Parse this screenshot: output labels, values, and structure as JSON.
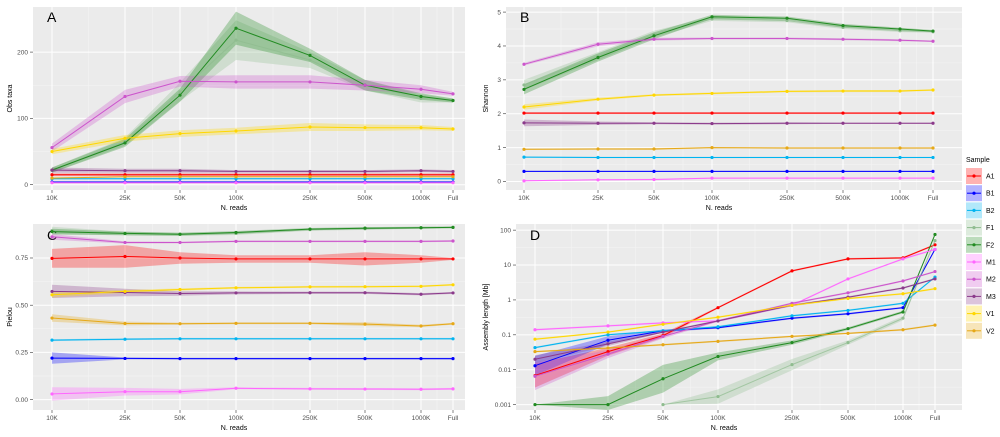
{
  "legend": {
    "title": "Sample",
    "position": "right",
    "items": [
      {
        "name": "A1",
        "color": "#ff0000"
      },
      {
        "name": "B1",
        "color": "#0000ff"
      },
      {
        "name": "B2",
        "color": "#00b4f0"
      },
      {
        "name": "F1",
        "color": "#8fbc8f"
      },
      {
        "name": "F2",
        "color": "#228b22"
      },
      {
        "name": "M1",
        "color": "#ff66ff"
      },
      {
        "name": "M2",
        "color": "#cc55cc"
      },
      {
        "name": "M3",
        "color": "#8b3a8b"
      },
      {
        "name": "V1",
        "color": "#ffd700"
      },
      {
        "name": "V2",
        "color": "#e6a817"
      }
    ]
  },
  "chart_data": [
    {
      "panel": "A",
      "type": "line",
      "title": "",
      "xlabel": "N. reads",
      "ylabel": "Obs taxa",
      "yscale": "linear",
      "ylim": [
        -8,
        268
      ],
      "yticks": [
        0,
        100,
        200
      ],
      "ytick_labels": [
        "0",
        "100",
        "200"
      ],
      "categories": [
        "10K",
        "25K",
        "50K",
        "100K",
        "250K",
        "500K",
        "1000K",
        "Full"
      ],
      "grid": true,
      "series": [
        {
          "name": "A1",
          "values": [
            15,
            15,
            15,
            15,
            15,
            15,
            15,
            15
          ],
          "band": [
            2,
            2,
            2,
            2,
            2,
            2,
            2,
            2
          ]
        },
        {
          "name": "B1",
          "values": [
            4,
            4,
            4,
            4,
            4,
            4,
            4,
            4
          ],
          "band": [
            1,
            1,
            1,
            1,
            1,
            1,
            1,
            1
          ]
        },
        {
          "name": "B2",
          "values": [
            9,
            9,
            9,
            9,
            9,
            9,
            9,
            9
          ],
          "band": [
            1,
            1,
            1,
            1,
            1,
            1,
            1,
            1
          ]
        },
        {
          "name": "F1",
          "values": [
            22,
            65,
            140,
            218,
            188,
            150,
            130,
            127
          ],
          "band": [
            4,
            6,
            14,
            30,
            12,
            8,
            6,
            3
          ]
        },
        {
          "name": "F2",
          "values": [
            22,
            63,
            135,
            236,
            195,
            150,
            133,
            127
          ],
          "band": [
            4,
            6,
            10,
            25,
            10,
            8,
            5,
            3
          ]
        },
        {
          "name": "M1",
          "values": [
            3,
            3,
            3,
            3,
            3,
            3,
            3,
            3
          ],
          "band": [
            1,
            1,
            1,
            1,
            1,
            1,
            1,
            1
          ]
        },
        {
          "name": "M2",
          "values": [
            56,
            133,
            156,
            155,
            155,
            150,
            144,
            137
          ],
          "band": [
            6,
            10,
            8,
            10,
            10,
            8,
            6,
            3
          ]
        },
        {
          "name": "M3",
          "values": [
            22,
            21,
            21,
            20,
            20,
            20,
            21,
            20
          ],
          "band": [
            4,
            3,
            3,
            2,
            2,
            2,
            2,
            2
          ]
        },
        {
          "name": "V1",
          "values": [
            50,
            70,
            77,
            81,
            87,
            86,
            86,
            84
          ],
          "band": [
            4,
            5,
            5,
            5,
            6,
            5,
            4,
            3
          ]
        },
        {
          "name": "V2",
          "values": [
            10,
            12,
            12,
            12,
            12,
            12,
            12,
            12
          ],
          "band": [
            1,
            1,
            1,
            1,
            1,
            1,
            1,
            1
          ]
        }
      ]
    },
    {
      "panel": "B",
      "type": "line",
      "title": "",
      "xlabel": "N. reads",
      "ylabel": "Shannon",
      "yscale": "linear",
      "ylim": [
        -0.25,
        5.15
      ],
      "yticks": [
        0,
        1,
        2,
        3,
        4,
        5
      ],
      "ytick_labels": [
        "0",
        "1",
        "2",
        "3",
        "4",
        "5"
      ],
      "categories": [
        "10K",
        "25K",
        "50K",
        "100K",
        "250K",
        "500K",
        "1000K",
        "Full"
      ],
      "grid": true,
      "series": [
        {
          "name": "A1",
          "values": [
            2.02,
            2.02,
            2.02,
            2.02,
            2.02,
            2.02,
            2.02,
            2.02
          ],
          "band": [
            0.03,
            0.03,
            0.03,
            0.03,
            0.03,
            0.03,
            0.03,
            0.03
          ]
        },
        {
          "name": "B1",
          "values": [
            0.3,
            0.3,
            0.3,
            0.3,
            0.3,
            0.3,
            0.3,
            0.3
          ],
          "band": [
            0.02,
            0.02,
            0.02,
            0.02,
            0.02,
            0.02,
            0.02,
            0.02
          ]
        },
        {
          "name": "B2",
          "values": [
            0.72,
            0.71,
            0.71,
            0.71,
            0.71,
            0.71,
            0.71,
            0.71
          ],
          "band": [
            0.02,
            0.02,
            0.02,
            0.02,
            0.02,
            0.02,
            0.02,
            0.02
          ]
        },
        {
          "name": "F1",
          "values": [
            2.85,
            3.7,
            4.35,
            4.8,
            4.75,
            4.55,
            4.45,
            4.42
          ],
          "band": [
            0.15,
            0.12,
            0.1,
            0.06,
            0.05,
            0.05,
            0.04,
            0.03
          ]
        },
        {
          "name": "F2",
          "values": [
            2.72,
            3.66,
            4.3,
            4.86,
            4.82,
            4.6,
            4.5,
            4.44
          ],
          "band": [
            0.15,
            0.12,
            0.1,
            0.06,
            0.05,
            0.05,
            0.04,
            0.03
          ]
        },
        {
          "name": "M1",
          "values": [
            0.02,
            0.05,
            0.06,
            0.1,
            0.1,
            0.1,
            0.1,
            0.1
          ],
          "band": [
            0.02,
            0.02,
            0.02,
            0.02,
            0.02,
            0.02,
            0.02,
            0.02
          ]
        },
        {
          "name": "M2",
          "values": [
            3.46,
            4.05,
            4.2,
            4.22,
            4.22,
            4.2,
            4.17,
            4.14
          ],
          "band": [
            0.04,
            0.06,
            0.04,
            0.03,
            0.03,
            0.03,
            0.03,
            0.02
          ]
        },
        {
          "name": "M3",
          "values": [
            1.73,
            1.72,
            1.72,
            1.71,
            1.72,
            1.72,
            1.72,
            1.72
          ],
          "band": [
            0.1,
            0.05,
            0.03,
            0.03,
            0.03,
            0.02,
            0.02,
            0.02
          ]
        },
        {
          "name": "V1",
          "values": [
            2.2,
            2.43,
            2.55,
            2.6,
            2.66,
            2.67,
            2.67,
            2.7
          ],
          "band": [
            0.08,
            0.04,
            0.03,
            0.03,
            0.03,
            0.03,
            0.03,
            0.02
          ]
        },
        {
          "name": "V2",
          "values": [
            0.95,
            0.96,
            0.96,
            1.0,
            0.99,
            0.99,
            0.99,
            0.99
          ],
          "band": [
            0.02,
            0.02,
            0.03,
            0.02,
            0.02,
            0.02,
            0.02,
            0.02
          ]
        }
      ]
    },
    {
      "panel": "C",
      "type": "line",
      "title": "",
      "xlabel": "N. reads",
      "ylabel": "Pielou",
      "yscale": "linear",
      "ylim": [
        -0.055,
        0.93
      ],
      "yticks": [
        0.0,
        0.25,
        0.5,
        0.75
      ],
      "ytick_labels": [
        "0.00",
        "0.25",
        "0.50",
        "0.75"
      ],
      "categories": [
        "10K",
        "25K",
        "50K",
        "100K",
        "250K",
        "500K",
        "1000K",
        "Full"
      ],
      "grid": true,
      "series": [
        {
          "name": "A1",
          "values": [
            0.748,
            0.758,
            0.75,
            0.745,
            0.745,
            0.745,
            0.745,
            0.745
          ],
          "band": [
            0.05,
            0.06,
            0.03,
            0.02,
            0.02,
            0.035,
            0.02,
            0.005
          ]
        },
        {
          "name": "B1",
          "values": [
            0.22,
            0.218,
            0.217,
            0.217,
            0.217,
            0.217,
            0.217,
            0.217
          ],
          "band": [
            0.03,
            0.005,
            0.005,
            0.005,
            0.005,
            0.005,
            0.005,
            0.005
          ]
        },
        {
          "name": "B2",
          "values": [
            0.315,
            0.32,
            0.322,
            0.322,
            0.322,
            0.322,
            0.322,
            0.322
          ],
          "band": [
            0.005,
            0.005,
            0.005,
            0.005,
            0.005,
            0.005,
            0.005,
            0.005
          ]
        },
        {
          "name": "F1",
          "values": [
            0.895,
            0.88,
            0.875,
            0.88,
            0.9,
            0.905,
            0.91,
            0.912
          ],
          "band": [
            0.02,
            0.01,
            0.008,
            0.008,
            0.006,
            0.006,
            0.005,
            0.005
          ]
        },
        {
          "name": "F2",
          "values": [
            0.89,
            0.88,
            0.876,
            0.885,
            0.903,
            0.908,
            0.91,
            0.912
          ],
          "band": [
            0.015,
            0.01,
            0.008,
            0.008,
            0.006,
            0.006,
            0.005,
            0.005
          ]
        },
        {
          "name": "M1",
          "values": [
            0.03,
            0.042,
            0.042,
            0.06,
            0.057,
            0.056,
            0.055,
            0.057
          ],
          "band": [
            0.035,
            0.02,
            0.015,
            0.005,
            0.005,
            0.005,
            0.005,
            0.005
          ]
        },
        {
          "name": "M2",
          "values": [
            0.862,
            0.832,
            0.832,
            0.838,
            0.838,
            0.838,
            0.838,
            0.84
          ],
          "band": [
            0.015,
            0.006,
            0.005,
            0.005,
            0.005,
            0.005,
            0.005,
            0.005
          ]
        },
        {
          "name": "M3",
          "values": [
            0.573,
            0.567,
            0.562,
            0.565,
            0.566,
            0.566,
            0.558,
            0.565
          ],
          "band": [
            0.035,
            0.02,
            0.012,
            0.008,
            0.006,
            0.006,
            0.006,
            0.005
          ]
        },
        {
          "name": "V1",
          "values": [
            0.555,
            0.573,
            0.583,
            0.592,
            0.597,
            0.598,
            0.6,
            0.608
          ],
          "band": [
            0.015,
            0.008,
            0.006,
            0.005,
            0.005,
            0.005,
            0.005,
            0.005
          ]
        },
        {
          "name": "V2",
          "values": [
            0.432,
            0.403,
            0.402,
            0.404,
            0.404,
            0.4,
            0.39,
            0.402
          ],
          "band": [
            0.02,
            0.01,
            0.006,
            0.005,
            0.005,
            0.01,
            0.006,
            0.005
          ]
        }
      ]
    },
    {
      "panel": "D",
      "type": "line",
      "title": "",
      "xlabel": "N. reads",
      "ylabel": "Assembly length [Mb]",
      "yscale": "log10",
      "ylim": [
        0.0007,
        150
      ],
      "yticks": [
        0.001,
        0.01,
        0.1,
        1,
        10,
        100
      ],
      "ytick_labels": [
        "0.001",
        "0.01",
        "0.1",
        "1",
        "10",
        "100"
      ],
      "categories": [
        "10K",
        "25K",
        "50K",
        "100K",
        "250K",
        "500K",
        "1000K",
        "Full"
      ],
      "grid": true,
      "series": [
        {
          "name": "A1",
          "values": [
            0.0068,
            0.033,
            0.095,
            0.6,
            6.8,
            15,
            16,
            38
          ],
          "band": [
            0.4,
            0.1,
            0.05,
            0.02,
            0.02,
            0.02,
            0.02,
            0.02
          ]
        },
        {
          "name": "B1",
          "values": [
            0.013,
            0.07,
            0.13,
            0.16,
            0.3,
            0.4,
            0.6,
            28
          ],
          "band": [
            0.3,
            0.1,
            0.03,
            0.02,
            0.02,
            0.02,
            0.02,
            0.02
          ]
        },
        {
          "name": "B2",
          "values": [
            0.043,
            0.1,
            0.13,
            0.17,
            0.35,
            0.5,
            0.8,
            4.5
          ],
          "band": [
            0.02,
            0.02,
            0.02,
            0.02,
            0.02,
            0.02,
            0.02,
            0.02
          ]
        },
        {
          "name": "F1",
          "values": [
            null,
            null,
            0.001,
            0.0017,
            0.014,
            0.06,
            0.3,
            50
          ],
          "band": [
            0,
            0,
            0,
            0.2,
            0.15,
            0.05,
            0.05,
            0.02
          ]
        },
        {
          "name": "F2",
          "values": [
            0.001,
            0.001,
            0.0055,
            0.024,
            0.06,
            0.15,
            0.45,
            75
          ],
          "band": [
            0,
            0.25,
            0.5,
            0.1,
            0.05,
            0.03,
            0.03,
            0.02
          ]
        },
        {
          "name": "M1",
          "values": [
            0.14,
            0.18,
            0.22,
            0.25,
            0.7,
            4,
            15,
            28
          ],
          "band": [
            0.02,
            0.02,
            0.02,
            0.02,
            0.02,
            0.02,
            0.02,
            0.02
          ]
        },
        {
          "name": "M2",
          "values": [
            0.0065,
            0.028,
            0.09,
            0.25,
            0.8,
            1.6,
            3.5,
            6.5
          ],
          "band": [
            0.5,
            0.1,
            0.05,
            0.02,
            0.02,
            0.02,
            0.02,
            0.02
          ]
        },
        {
          "name": "M3",
          "values": [
            0.02,
            0.055,
            0.12,
            0.25,
            0.7,
            1.2,
            2.2,
            4.0
          ],
          "band": [
            0.1,
            0.05,
            0.02,
            0.02,
            0.02,
            0.02,
            0.02,
            0.02
          ]
        },
        {
          "name": "V1",
          "values": [
            0.075,
            0.12,
            0.2,
            0.32,
            0.7,
            1.1,
            1.5,
            2.1
          ],
          "band": [
            0.02,
            0.02,
            0.02,
            0.02,
            0.02,
            0.02,
            0.02,
            0.02
          ]
        },
        {
          "name": "V2",
          "values": [
            0.033,
            0.042,
            0.052,
            0.065,
            0.09,
            0.11,
            0.14,
            0.19
          ],
          "band": [
            0.02,
            0.02,
            0.02,
            0.02,
            0.02,
            0.02,
            0.02,
            0.02
          ]
        }
      ]
    }
  ]
}
